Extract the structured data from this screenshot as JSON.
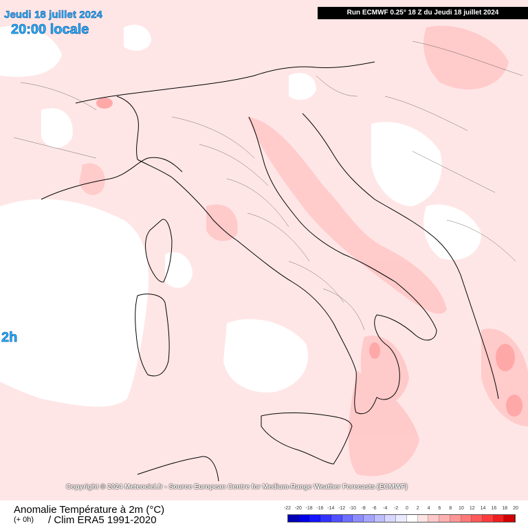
{
  "header": {
    "date": "Jeudi 18 juillet 2024",
    "time": "20:00 locale",
    "run": "Run ECMWF 0.25° 18 Z du Jeudi 18 juillet 2024"
  },
  "side_hour": "2h",
  "copyright": "Copyright © 2024 Meteociel.fr - Source European Centre for Medium-Range Weather Forecasts (ECMWF)",
  "legend": {
    "title": "Anomalie Température à 2m (°C)",
    "offset": "(+ 0h)",
    "clim": "/ Clim ERA5 1991-2020",
    "scale_labels": [
      "-22",
      "-20",
      "-18",
      "-16",
      "-14",
      "-12",
      "-10",
      "-8",
      "-6",
      "-4",
      "-2",
      "0",
      "2",
      "4",
      "6",
      "8",
      "10",
      "12",
      "14",
      "16",
      "18",
      "20"
    ],
    "scale_colors": [
      "#0000b4",
      "#0000e6",
      "#1414ff",
      "#3232ff",
      "#5050ff",
      "#6e6eff",
      "#8c8cff",
      "#a5a5ff",
      "#bebeff",
      "#d7d7ff",
      "#ebebff",
      "#ffffff",
      "#ffe4e4",
      "#ffc8c8",
      "#ffb0b0",
      "#ff9696",
      "#ff7878",
      "#ff5a5a",
      "#ff3c3c",
      "#f01e1e",
      "#d20000"
    ]
  },
  "map": {
    "region": "Italy / Central Mediterranean",
    "colors": {
      "sea_anomaly_low": "#ffe6e6",
      "anomaly_0_2": "#ffffff",
      "anomaly_2_4": "#ffd9d9",
      "anomaly_4_6": "#ffc0c0",
      "anomaly_6_8": "#ffa8a8",
      "border": "#000000"
    },
    "place_labels": []
  }
}
